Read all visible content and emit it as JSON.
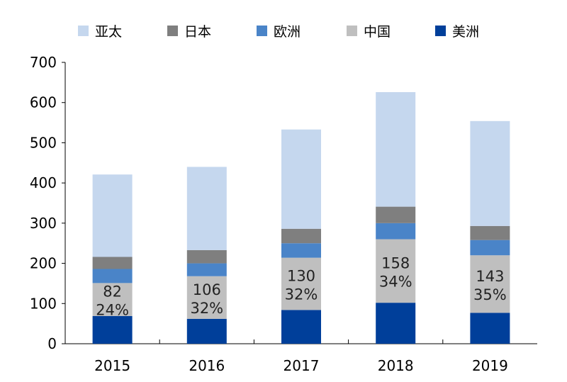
{
  "chart_data": {
    "type": "bar",
    "stacked": true,
    "title": "",
    "xlabel": "",
    "ylabel": "",
    "categories": [
      "2015",
      "2016",
      "2017",
      "2018",
      "2019"
    ],
    "ylim": [
      0,
      700
    ],
    "yticks": [
      0,
      100,
      200,
      300,
      400,
      500,
      600,
      700
    ],
    "grid": false,
    "legend_position": "top",
    "legend_order": [
      "亚太",
      "日本",
      "欧洲",
      "中国",
      "美洲"
    ],
    "series": [
      {
        "name": "美洲",
        "color": "#003f9a",
        "values": [
          69,
          62,
          84,
          102,
          77
        ]
      },
      {
        "name": "中国",
        "color": "#bfbfbf",
        "values": [
          82,
          106,
          130,
          158,
          143
        ],
        "labels": [
          "82",
          "106",
          "130",
          "158",
          "143"
        ],
        "share_labels": [
          "24%",
          "32%",
          "32%",
          "34%",
          "35%"
        ]
      },
      {
        "name": "欧洲",
        "color": "#4a84c8",
        "values": [
          35,
          32,
          36,
          40,
          38
        ]
      },
      {
        "name": "日本",
        "color": "#7f7f7f",
        "values": [
          30,
          33,
          36,
          41,
          35
        ]
      },
      {
        "name": "亚太",
        "color": "#c5d7ee",
        "values": [
          205,
          207,
          247,
          285,
          261
        ]
      }
    ]
  }
}
